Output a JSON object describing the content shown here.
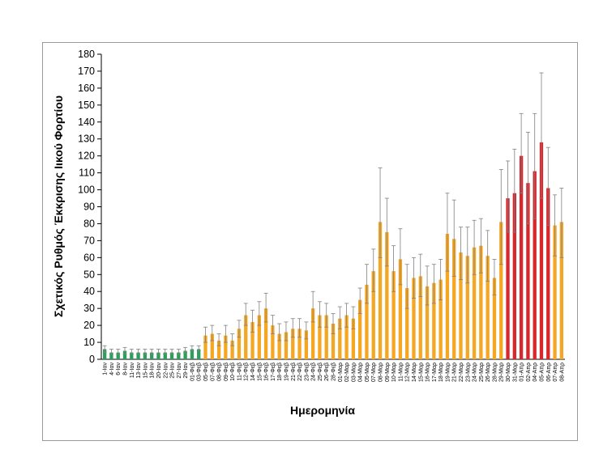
{
  "chart_data": {
    "type": "bar",
    "xlabel": "Ημερομηνία",
    "ylabel": "Σχετικός Ρυθμός Έκκρισης Ιικού Φορτίου",
    "ylim": [
      0,
      180
    ],
    "yticks": [
      0,
      10,
      20,
      30,
      40,
      50,
      60,
      70,
      80,
      90,
      100,
      110,
      120,
      130,
      140,
      150,
      160,
      170,
      180
    ],
    "grid": false,
    "error_bars": true,
    "colors": {
      "green": "#2ca05a",
      "orange": "#f5a623",
      "red": "#d9262c",
      "error": "#808080",
      "axis": "#000000"
    },
    "categories": [
      "1-Ιαν",
      "4-Ιαν",
      "6-Ιαν",
      "8-Ιαν",
      "11-Ιαν",
      "13-Ιαν",
      "15-Ιαν",
      "18-Ιαν",
      "20-Ιαν",
      "22-Ιαν",
      "25-Ιαν",
      "27-Ιαν",
      "29-Ιαν",
      "01-Φεβ",
      "03-Φεβ",
      "05-Φεβ",
      "07-Φεβ",
      "08-Φεβ",
      "09-Φεβ",
      "10-Φεβ",
      "11-Φεβ",
      "12-Φεβ",
      "14-Φεβ",
      "15-Φεβ",
      "16-Φεβ",
      "17-Φεβ",
      "18-Φεβ",
      "19-Φεβ",
      "21-Φεβ",
      "22-Φεβ",
      "23-Φεβ",
      "24-Φεβ",
      "25-Φεβ",
      "26-Φεβ",
      "28-Φεβ",
      "01-Μαρ",
      "02-Μαρ",
      "03-Μαρ",
      "04-Μαρ",
      "05-Μαρ",
      "07-Μαρ",
      "08-Μαρ",
      "09-Μαρ",
      "10-Μαρ",
      "11-Μαρ",
      "12-Μαρ",
      "14-Μαρ",
      "15-Μαρ",
      "16-Μαρ",
      "17-Μαρ",
      "18-Μαρ",
      "19-Μαρ",
      "21-Μαρ",
      "22-Μαρ",
      "23-Μαρ",
      "24-Μαρ",
      "25-Μαρ",
      "26-Μαρ",
      "28-Μαρ",
      "29-Μαρ",
      "30-Μαρ",
      "31-Μαρ",
      "01-Απρ",
      "02-Απρ",
      "04-Απρ",
      "05-Απρ",
      "06-Απρ",
      "07-Απρ",
      "08-Απρ"
    ],
    "values": [
      6,
      4,
      4,
      5,
      4,
      4,
      4,
      4,
      4,
      4,
      4,
      4,
      5,
      6,
      6,
      14,
      15,
      11,
      14,
      11,
      18,
      26,
      22,
      26,
      30,
      20,
      15,
      16,
      18,
      18,
      17,
      30,
      26,
      26,
      21,
      24,
      26,
      24,
      35,
      44,
      52,
      81,
      75,
      52,
      59,
      42,
      48,
      49,
      43,
      45,
      47,
      74,
      71,
      63,
      61,
      66,
      67,
      61,
      48,
      81,
      95,
      98,
      120,
      104,
      111,
      128,
      101,
      79,
      81
    ],
    "err_upper": [
      8,
      6,
      6,
      7,
      6,
      6,
      6,
      6,
      6,
      6,
      6,
      6,
      7,
      8,
      8,
      19,
      20,
      15,
      20,
      15,
      23,
      33,
      29,
      34,
      39,
      26,
      21,
      22,
      24,
      24,
      22,
      40,
      34,
      33,
      27,
      31,
      33,
      31,
      42,
      56,
      65,
      113,
      95,
      67,
      77,
      56,
      60,
      62,
      55,
      56,
      59,
      98,
      94,
      78,
      78,
      82,
      83,
      76,
      59,
      112,
      117,
      124,
      145,
      134,
      145,
      169,
      125,
      97,
      101
    ],
    "err_lower": [
      4,
      3,
      3,
      3,
      3,
      3,
      3,
      3,
      3,
      3,
      3,
      3,
      4,
      5,
      5,
      10,
      11,
      8,
      10,
      8,
      13,
      20,
      16,
      20,
      22,
      15,
      11,
      11,
      13,
      13,
      12,
      22,
      19,
      19,
      15,
      18,
      19,
      18,
      27,
      33,
      40,
      60,
      55,
      40,
      44,
      30,
      36,
      37,
      32,
      33,
      35,
      52,
      49,
      47,
      45,
      50,
      51,
      46,
      38,
      56,
      75,
      75,
      98,
      80,
      83,
      95,
      79,
      61,
      60
    ],
    "bar_colors": [
      "green",
      "green",
      "green",
      "green",
      "green",
      "green",
      "green",
      "green",
      "green",
      "green",
      "green",
      "green",
      "green",
      "green",
      "green",
      "orange",
      "orange",
      "orange",
      "orange",
      "orange",
      "orange",
      "orange",
      "orange",
      "orange",
      "orange",
      "orange",
      "orange",
      "orange",
      "orange",
      "orange",
      "orange",
      "orange",
      "orange",
      "orange",
      "orange",
      "orange",
      "orange",
      "orange",
      "orange",
      "orange",
      "orange",
      "orange",
      "orange",
      "orange",
      "orange",
      "orange",
      "orange",
      "orange",
      "orange",
      "orange",
      "orange",
      "orange",
      "orange",
      "orange",
      "orange",
      "orange",
      "orange",
      "orange",
      "orange",
      "orange",
      "red",
      "red",
      "red",
      "red",
      "red",
      "red",
      "red",
      "orange",
      "orange"
    ]
  }
}
